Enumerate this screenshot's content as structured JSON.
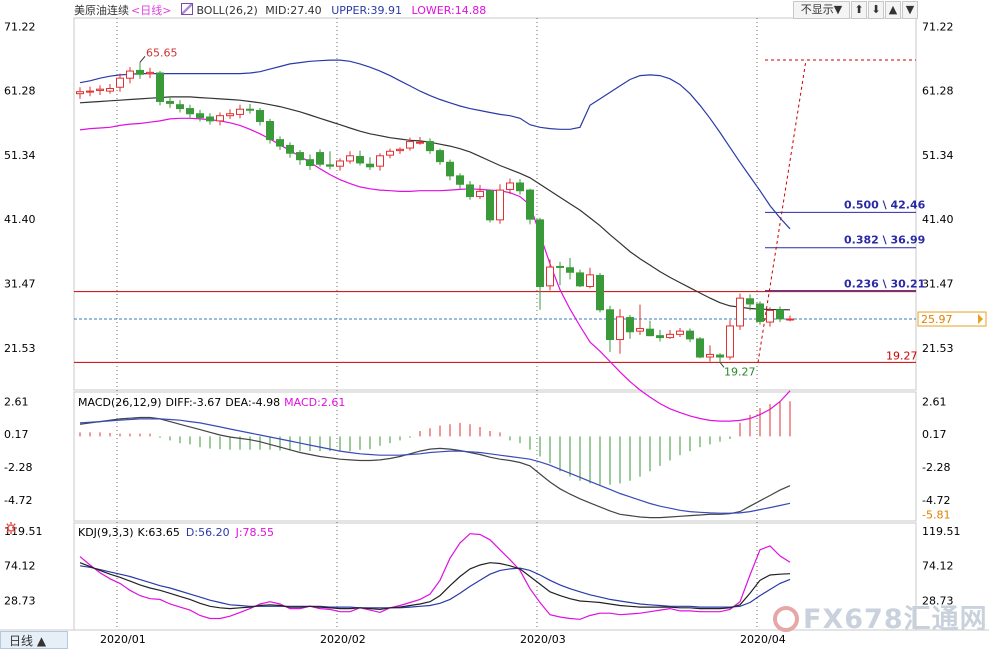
{
  "header": {
    "symbol": "美原油连续",
    "period": "<日线>",
    "indicator": "BOLL(26,2)",
    "mid_label": "MID:27.40",
    "upper_label": "UPPER:39.91",
    "lower_label": "LOWER:14.88",
    "hide_button": "不显示▼",
    "nav_buttons": [
      "⬆",
      "⬇",
      "▲",
      "▼"
    ]
  },
  "bottom_tab": "日线 ▲",
  "watermark": "FX678汇通网",
  "colors": {
    "candle_up": "#e03030",
    "candle_down": "#3a9a3a",
    "mid": "#333333",
    "upper": "#2a3aa8",
    "lower": "#e010e0",
    "fib": "#2a2aa8",
    "support": "#cc0000",
    "price_line": "#3a78c0",
    "macd_hist_pos": "#e03030",
    "macd_hist_neg": "#3a9a3a"
  },
  "chart_data": [
    {
      "type": "candlestick",
      "yaxis_ticks": [
        "71.22",
        "61.28",
        "51.34",
        "41.40",
        "31.47",
        "21.53"
      ],
      "ylim": [
        15.0,
        72.5
      ],
      "x_ticks": [
        {
          "label": "2020/01",
          "index": 2
        },
        {
          "label": "2020/02",
          "index": 24
        },
        {
          "label": "2020/03",
          "index": 44
        },
        {
          "label": "2020/04",
          "index": 66
        }
      ],
      "current_price": "25.97",
      "current_value": 25.97,
      "labels": {
        "high": "65.65",
        "low": "19.27",
        "support": "19.27"
      },
      "high_index": 6,
      "high_value": 65.65,
      "low_index": 64,
      "low_value": 19.27,
      "support_value": 19.27,
      "resistance_value": 30.21,
      "fib": [
        {
          "label": "0.500 \\ 42.46",
          "value": 42.46
        },
        {
          "label": "0.382 \\ 36.99",
          "value": 36.99
        },
        {
          "label": "0.236 \\ 30.21",
          "value": 30.21
        }
      ],
      "target_value": 66.0,
      "candles": [
        [
          60.8,
          61.1,
          61.8,
          60.0
        ],
        [
          61.1,
          61.2,
          61.9,
          60.4
        ],
        [
          61.3,
          61.5,
          62.1,
          60.6
        ],
        [
          61.2,
          61.6,
          62.3,
          60.8
        ],
        [
          61.8,
          63.2,
          63.9,
          61.1
        ],
        [
          63.2,
          64.3,
          64.9,
          62.4
        ],
        [
          64.4,
          63.8,
          65.65,
          63.1
        ],
        [
          63.9,
          64.1,
          64.8,
          63.2
        ],
        [
          64.0,
          59.6,
          64.3,
          59.0
        ],
        [
          59.6,
          59.3,
          60.4,
          58.6
        ],
        [
          59.1,
          58.5,
          59.8,
          57.9
        ],
        [
          58.5,
          57.7,
          59.1,
          57.1
        ],
        [
          57.7,
          57.1,
          58.3,
          56.5
        ],
        [
          57.2,
          56.6,
          57.8,
          56.0
        ],
        [
          56.6,
          57.4,
          57.9,
          55.9
        ],
        [
          57.4,
          57.7,
          58.4,
          56.9
        ],
        [
          57.6,
          58.4,
          59.1,
          57.0
        ],
        [
          58.4,
          58.3,
          59.2,
          57.7
        ],
        [
          58.2,
          56.5,
          58.6,
          55.9
        ],
        [
          56.5,
          53.7,
          56.9,
          53.1
        ],
        [
          53.7,
          52.7,
          54.2,
          52.1
        ],
        [
          52.8,
          51.6,
          53.3,
          50.9
        ],
        [
          51.7,
          50.6,
          52.1,
          49.8
        ],
        [
          50.6,
          49.7,
          51.4,
          49.0
        ],
        [
          51.7,
          49.9,
          52.2,
          49.5
        ],
        [
          49.8,
          49.6,
          51.9,
          49.1
        ],
        [
          49.6,
          50.4,
          50.8,
          48.9
        ],
        [
          50.4,
          51.2,
          51.9,
          50.0
        ],
        [
          51.1,
          50.1,
          52.0,
          49.7
        ],
        [
          49.9,
          49.5,
          51.0,
          49.0
        ],
        [
          49.6,
          51.2,
          51.6,
          48.9
        ],
        [
          51.3,
          51.9,
          52.3,
          50.8
        ],
        [
          52.0,
          52.2,
          52.5,
          51.5
        ],
        [
          52.4,
          53.4,
          54.0,
          52.0
        ],
        [
          53.3,
          53.3,
          54.1,
          52.9
        ],
        [
          53.4,
          52.0,
          53.9,
          51.5
        ],
        [
          52.0,
          50.3,
          52.3,
          49.8
        ],
        [
          50.2,
          48.1,
          50.6,
          47.4
        ],
        [
          48.1,
          46.8,
          48.5,
          46.1
        ],
        [
          46.7,
          44.9,
          47.3,
          44.4
        ],
        [
          44.9,
          45.7,
          46.7,
          44.5
        ],
        [
          45.8,
          41.3,
          46.0,
          40.9
        ],
        [
          41.3,
          45.9,
          46.8,
          40.7
        ],
        [
          46.0,
          47.0,
          47.7,
          45.3
        ],
        [
          47.0,
          45.8,
          47.6,
          45.2
        ],
        [
          45.9,
          41.4,
          46.1,
          40.6
        ],
        [
          41.3,
          31.0,
          41.6,
          27.4
        ],
        [
          31.1,
          34.0,
          35.2,
          30.4
        ],
        [
          34.1,
          34.0,
          34.8,
          31.2
        ],
        [
          33.9,
          33.2,
          35.4,
          32.1
        ],
        [
          33.1,
          31.1,
          33.6,
          30.9
        ],
        [
          31.0,
          32.8,
          33.9,
          30.7
        ],
        [
          32.7,
          27.4,
          33.1,
          27.0
        ],
        [
          27.4,
          22.8,
          28.0,
          20.9
        ],
        [
          22.8,
          26.3,
          27.5,
          20.6
        ],
        [
          26.2,
          24.0,
          26.6,
          22.9
        ],
        [
          24.1,
          24.5,
          28.2,
          23.5
        ],
        [
          24.4,
          23.4,
          25.7,
          23.3
        ],
        [
          23.4,
          23.1,
          24.3,
          22.5
        ],
        [
          23.1,
          23.6,
          24.3,
          22.9
        ],
        [
          23.6,
          24.1,
          24.6,
          23.2
        ],
        [
          24.1,
          22.9,
          24.5,
          22.4
        ],
        [
          22.9,
          20.1,
          23.2,
          19.9
        ],
        [
          20.1,
          20.5,
          21.9,
          19.4
        ],
        [
          20.4,
          20.1,
          20.7,
          19.27
        ],
        [
          20.1,
          24.9,
          25.8,
          19.7
        ],
        [
          24.9,
          29.2,
          29.9,
          24.3
        ],
        [
          29.1,
          28.3,
          29.8,
          27.3
        ],
        [
          28.3,
          25.6,
          28.7,
          25.1
        ],
        [
          25.5,
          27.3,
          27.8,
          24.8
        ],
        [
          27.4,
          26.0,
          27.9,
          25.5
        ],
        [
          25.9,
          25.97,
          26.5,
          25.6
        ]
      ],
      "boll_mid": [
        59.4,
        59.5,
        59.6,
        59.7,
        59.8,
        59.9,
        60.0,
        60.1,
        60.2,
        60.3,
        60.3,
        60.3,
        60.2,
        60.1,
        60.0,
        59.9,
        59.8,
        59.6,
        59.4,
        59.1,
        58.8,
        58.4,
        58.0,
        57.5,
        57.0,
        56.5,
        56.0,
        55.5,
        55.0,
        54.6,
        54.3,
        54.0,
        53.8,
        53.6,
        53.5,
        53.3,
        53.0,
        52.7,
        52.3,
        51.8,
        51.1,
        50.4,
        49.7,
        49.1,
        48.5,
        47.8,
        46.8,
        45.8,
        44.8,
        43.8,
        42.8,
        41.6,
        40.4,
        39.0,
        37.7,
        36.4,
        35.3,
        34.3,
        33.3,
        32.4,
        31.6,
        30.8,
        30.0,
        29.2,
        28.5,
        28.0,
        27.8,
        27.6,
        27.5,
        27.45,
        27.42,
        27.4
      ],
      "boll_upper": [
        62.5,
        62.8,
        63.2,
        63.5,
        63.7,
        63.8,
        63.9,
        63.9,
        63.9,
        63.9,
        63.9,
        63.9,
        63.9,
        63.9,
        63.9,
        63.9,
        63.9,
        64.0,
        64.2,
        64.6,
        65.0,
        65.4,
        65.6,
        65.8,
        65.9,
        66.0,
        66.0,
        65.8,
        65.4,
        64.9,
        64.3,
        63.6,
        62.8,
        62.0,
        61.2,
        60.5,
        59.9,
        59.4,
        58.9,
        58.5,
        58.2,
        57.9,
        57.6,
        57.4,
        57.0,
        56.0,
        55.6,
        55.4,
        55.3,
        55.3,
        55.6,
        59.0,
        60.0,
        61.0,
        62.0,
        63.0,
        63.6,
        63.7,
        63.6,
        63.1,
        62.2,
        60.8,
        59.0,
        57.0,
        54.8,
        52.5,
        50.2,
        48.0,
        45.8,
        43.5,
        41.6,
        39.91
      ],
      "boll_lower": [
        55.2,
        55.4,
        55.5,
        55.6,
        55.9,
        56.1,
        56.2,
        56.4,
        56.6,
        56.9,
        57.0,
        57.0,
        56.9,
        56.8,
        56.6,
        56.3,
        55.9,
        55.3,
        54.6,
        53.8,
        52.9,
        52.0,
        51.1,
        50.2,
        49.2,
        48.3,
        47.5,
        46.9,
        46.4,
        46.1,
        45.9,
        45.8,
        45.7,
        45.7,
        45.8,
        45.8,
        45.8,
        45.9,
        46.0,
        46.1,
        46.0,
        45.9,
        45.8,
        45.5,
        44.9,
        43.6,
        39.0,
        34.5,
        30.5,
        27.5,
        24.9,
        22.4,
        21.0,
        19.4,
        17.8,
        16.3,
        15.0,
        13.9,
        12.9,
        12.1,
        11.5,
        11.0,
        10.6,
        10.3,
        10.2,
        10.2,
        10.3,
        10.6,
        11.2,
        12.0,
        13.2,
        14.88
      ]
    },
    {
      "type": "bar",
      "title": "MACD(26,12,9)",
      "diff_label": "DIFF:-3.67",
      "dea_label": "DEA:-4.98",
      "macd_label": "MACD:2.61",
      "yaxis_ticks": [
        "2.61",
        "0.17",
        "-2.28",
        "-4.72",
        "-5.81"
      ],
      "ylim": [
        -6.3,
        3.3
      ],
      "diff": [
        0.9,
        1.0,
        1.1,
        1.2,
        1.3,
        1.35,
        1.4,
        1.4,
        1.3,
        1.1,
        0.9,
        0.7,
        0.5,
        0.3,
        0.1,
        -0.05,
        -0.15,
        -0.25,
        -0.4,
        -0.6,
        -0.8,
        -1.0,
        -1.2,
        -1.35,
        -1.5,
        -1.6,
        -1.7,
        -1.75,
        -1.8,
        -1.8,
        -1.75,
        -1.65,
        -1.5,
        -1.3,
        -1.1,
        -0.95,
        -0.9,
        -0.95,
        -1.05,
        -1.2,
        -1.35,
        -1.55,
        -1.7,
        -1.8,
        -1.95,
        -2.2,
        -2.8,
        -3.4,
        -3.9,
        -4.3,
        -4.65,
        -4.95,
        -5.25,
        -5.55,
        -5.8,
        -5.9,
        -6.0,
        -6.05,
        -6.05,
        -6.0,
        -5.95,
        -5.9,
        -5.85,
        -5.8,
        -5.8,
        -5.75,
        -5.6,
        -5.2,
        -4.8,
        -4.4,
        -4.0,
        -3.67
      ],
      "dea": [
        1.0,
        1.05,
        1.1,
        1.15,
        1.2,
        1.25,
        1.3,
        1.3,
        1.3,
        1.25,
        1.2,
        1.1,
        1.0,
        0.85,
        0.7,
        0.55,
        0.4,
        0.25,
        0.1,
        -0.05,
        -0.2,
        -0.35,
        -0.5,
        -0.65,
        -0.8,
        -0.95,
        -1.1,
        -1.2,
        -1.3,
        -1.35,
        -1.4,
        -1.4,
        -1.4,
        -1.35,
        -1.3,
        -1.2,
        -1.15,
        -1.1,
        -1.1,
        -1.15,
        -1.2,
        -1.3,
        -1.4,
        -1.5,
        -1.6,
        -1.7,
        -1.9,
        -2.15,
        -2.45,
        -2.75,
        -3.05,
        -3.35,
        -3.65,
        -3.95,
        -4.25,
        -4.5,
        -4.75,
        -5.0,
        -5.2,
        -5.35,
        -5.5,
        -5.6,
        -5.65,
        -5.7,
        -5.72,
        -5.72,
        -5.7,
        -5.6,
        -5.45,
        -5.3,
        -5.15,
        -4.98
      ],
      "hist": [
        0.3,
        0.3,
        0.3,
        0.25,
        0.2,
        0.2,
        0.2,
        0.2,
        -0.1,
        -0.3,
        -0.5,
        -0.6,
        -0.8,
        -0.9,
        -0.95,
        -1.0,
        -1.0,
        -1.0,
        -1.0,
        -1.0,
        -1.05,
        -1.05,
        -1.1,
        -1.1,
        -1.1,
        -1.1,
        -1.1,
        -1.1,
        -1.0,
        -0.95,
        -0.7,
        -0.5,
        -0.3,
        -0.1,
        0.4,
        0.6,
        0.8,
        0.9,
        1.0,
        0.9,
        0.7,
        0.4,
        0.3,
        -0.3,
        -0.5,
        -1.0,
        -1.5,
        -2.0,
        -2.6,
        -3.0,
        -3.3,
        -3.5,
        -3.6,
        -3.6,
        -3.5,
        -3.3,
        -3.0,
        -2.6,
        -2.2,
        -1.8,
        -1.4,
        -1.1,
        -0.8,
        -0.6,
        -0.4,
        -0.2,
        1.0,
        1.6,
        2.1,
        2.4,
        2.6,
        2.61
      ]
    },
    {
      "type": "line",
      "title": "KDJ(9,3,3)",
      "k_label": "K:63.65",
      "d_label": "D:56.20",
      "j_label": "J:78.55",
      "yaxis_ticks": [
        "119.51",
        "74.12",
        "28.73"
      ],
      "ylim": [
        -10,
        130
      ],
      "k": [
        78,
        73,
        68,
        63,
        59,
        54,
        49,
        45,
        42,
        38,
        34,
        30,
        25,
        21,
        19,
        18,
        19,
        20,
        22,
        23,
        22,
        20,
        20,
        21,
        20,
        19,
        18,
        18,
        19,
        18,
        17,
        19,
        20,
        22,
        24,
        27,
        35,
        48,
        60,
        70,
        75,
        78,
        77,
        74,
        70,
        60,
        50,
        40,
        35,
        31,
        28,
        27,
        26,
        24,
        22,
        21,
        20,
        20,
        20,
        20,
        19,
        19,
        18,
        18,
        18,
        19,
        23,
        38,
        55,
        62,
        63,
        63.65
      ],
      "d": [
        74,
        72,
        69,
        66,
        63,
        60,
        56,
        52,
        48,
        45,
        41,
        37,
        33,
        29,
        26,
        23,
        22,
        21,
        21,
        21,
        21,
        21,
        21,
        21,
        21,
        20,
        20,
        20,
        19,
        19,
        19,
        19,
        19,
        20,
        21,
        22,
        25,
        30,
        38,
        47,
        55,
        63,
        68,
        70,
        71,
        68,
        62,
        55,
        49,
        44,
        40,
        36,
        33,
        30,
        28,
        26,
        24,
        23,
        22,
        21,
        21,
        21,
        20,
        20,
        20,
        20,
        21,
        26,
        35,
        43,
        51,
        56.2
      ],
      "j": [
        86,
        75,
        65,
        57,
        51,
        42,
        35,
        31,
        30,
        24,
        20,
        16,
        9,
        5,
        5,
        8,
        13,
        18,
        24,
        27,
        24,
        18,
        18,
        21,
        18,
        17,
        14,
        14,
        19,
        16,
        13,
        19,
        22,
        26,
        30,
        37,
        55,
        84,
        104,
        116,
        115,
        108,
        95,
        82,
        68,
        44,
        26,
        10,
        7,
        5,
        4,
        9,
        12,
        12,
        10,
        11,
        12,
        14,
        16,
        18,
        15,
        15,
        14,
        14,
        14,
        17,
        27,
        62,
        95,
        100,
        87,
        78.55
      ]
    }
  ]
}
